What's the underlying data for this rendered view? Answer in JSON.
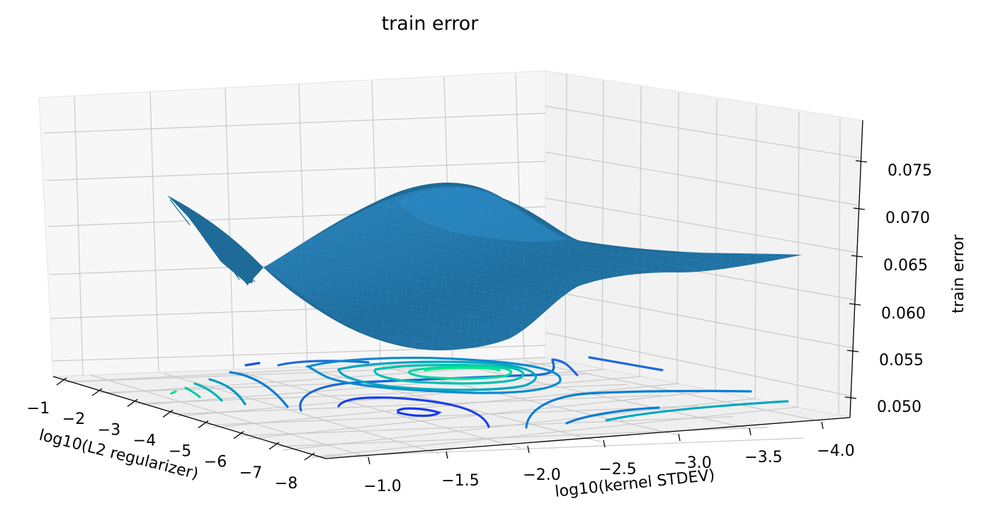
{
  "chart_data": {
    "type": "surface3d",
    "title": "train error",
    "xlabel": "log10(L2 regularizer)",
    "ylabel": "log10(kernel STDEV)",
    "zlabel": "train error",
    "x_ticks": [
      "−1",
      "−2",
      "−3",
      "−4",
      "−5",
      "−6",
      "−7",
      "−8"
    ],
    "y_ticks": [
      "−1.0",
      "−1.5",
      "−2.0",
      "−2.5",
      "−3.0",
      "−3.5",
      "−4.0"
    ],
    "z_ticks": [
      "0.050",
      "0.055",
      "0.060",
      "0.065",
      "0.070",
      "0.075"
    ],
    "xlim": [
      -1,
      -8
    ],
    "ylim": [
      -1.0,
      -4.0
    ],
    "zlim": [
      0.05,
      0.078
    ],
    "surface_color": "#1f77b4",
    "contour_projection": "floor",
    "contour_colormap": "winter",
    "grid": true
  }
}
